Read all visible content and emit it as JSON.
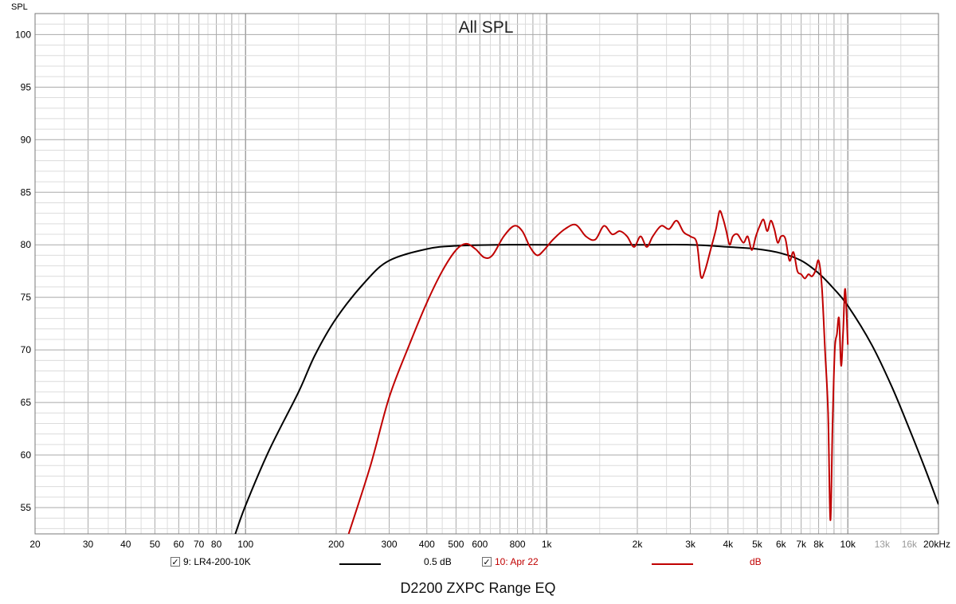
{
  "chart_data": {
    "type": "line",
    "title": "All SPL",
    "ylabel": "SPL",
    "xscale": "log",
    "xlim": [
      20,
      20000
    ],
    "ylim": [
      52.5,
      102
    ],
    "ytick_labels": [
      "55",
      "60",
      "65",
      "70",
      "75",
      "80",
      "85",
      "90",
      "95",
      "100"
    ],
    "xtick_labels": [
      {
        "value": 20,
        "label": "20",
        "minor": false
      },
      {
        "value": 30,
        "label": "30",
        "minor": false
      },
      {
        "value": 40,
        "label": "40",
        "minor": false
      },
      {
        "value": 50,
        "label": "50",
        "minor": false
      },
      {
        "value": 60,
        "label": "60",
        "minor": false
      },
      {
        "value": 70,
        "label": "70",
        "minor": false
      },
      {
        "value": 80,
        "label": "80",
        "minor": false
      },
      {
        "value": 100,
        "label": "100",
        "minor": false
      },
      {
        "value": 200,
        "label": "200",
        "minor": false
      },
      {
        "value": 300,
        "label": "300",
        "minor": false
      },
      {
        "value": 400,
        "label": "400",
        "minor": false
      },
      {
        "value": 500,
        "label": "500",
        "minor": false
      },
      {
        "value": 600,
        "label": "600",
        "minor": false
      },
      {
        "value": 800,
        "label": "800",
        "minor": false
      },
      {
        "value": 1000,
        "label": "1k",
        "minor": false
      },
      {
        "value": 2000,
        "label": "2k",
        "minor": false
      },
      {
        "value": 3000,
        "label": "3k",
        "minor": false
      },
      {
        "value": 4000,
        "label": "4k",
        "minor": false
      },
      {
        "value": 5000,
        "label": "5k",
        "minor": false
      },
      {
        "value": 6000,
        "label": "6k",
        "minor": false
      },
      {
        "value": 7000,
        "label": "7k",
        "minor": false
      },
      {
        "value": 8000,
        "label": "8k",
        "minor": false
      },
      {
        "value": 10000,
        "label": "10k",
        "minor": false
      },
      {
        "value": 13000,
        "label": "13k",
        "minor": true
      },
      {
        "value": 16000,
        "label": "16k",
        "minor": true
      },
      {
        "value": 20000,
        "label": "20kHz",
        "minor": false
      }
    ],
    "grid": true,
    "series": [
      {
        "name": "9: LR4-200-10K",
        "color": "#000000",
        "points": [
          [
            92,
            52.3
          ],
          [
            100,
            55.2
          ],
          [
            120,
            60.5
          ],
          [
            150,
            66.0
          ],
          [
            170,
            69.5
          ],
          [
            200,
            73.0
          ],
          [
            250,
            76.5
          ],
          [
            300,
            78.5
          ],
          [
            400,
            79.6
          ],
          [
            500,
            79.9
          ],
          [
            700,
            80.0
          ],
          [
            1000,
            80.0
          ],
          [
            2000,
            80.0
          ],
          [
            3000,
            80.0
          ],
          [
            4000,
            79.8
          ],
          [
            5000,
            79.6
          ],
          [
            6000,
            79.2
          ],
          [
            7000,
            78.5
          ],
          [
            8000,
            77.3
          ],
          [
            9000,
            75.8
          ],
          [
            10000,
            74.2
          ],
          [
            12000,
            70.5
          ],
          [
            14000,
            66.5
          ],
          [
            16000,
            62.5
          ],
          [
            18000,
            58.8
          ],
          [
            20000,
            55.3
          ]
        ]
      },
      {
        "name": "10: Apr 22",
        "color": "#c00000",
        "points": [
          [
            220,
            52.5
          ],
          [
            260,
            59.0
          ],
          [
            300,
            65.5
          ],
          [
            350,
            70.5
          ],
          [
            400,
            74.5
          ],
          [
            450,
            77.5
          ],
          [
            500,
            79.5
          ],
          [
            540,
            80.1
          ],
          [
            580,
            79.6
          ],
          [
            620,
            78.8
          ],
          [
            660,
            79.0
          ],
          [
            720,
            80.8
          ],
          [
            780,
            81.8
          ],
          [
            830,
            81.3
          ],
          [
            880,
            79.8
          ],
          [
            930,
            79.0
          ],
          [
            980,
            79.5
          ],
          [
            1050,
            80.5
          ],
          [
            1150,
            81.5
          ],
          [
            1250,
            81.9
          ],
          [
            1350,
            80.8
          ],
          [
            1450,
            80.5
          ],
          [
            1550,
            81.8
          ],
          [
            1650,
            81.0
          ],
          [
            1750,
            81.3
          ],
          [
            1850,
            80.8
          ],
          [
            1950,
            79.8
          ],
          [
            2050,
            80.8
          ],
          [
            2150,
            79.8
          ],
          [
            2250,
            80.8
          ],
          [
            2400,
            81.8
          ],
          [
            2550,
            81.5
          ],
          [
            2700,
            82.3
          ],
          [
            2850,
            81.2
          ],
          [
            3000,
            80.8
          ],
          [
            3150,
            80.2
          ],
          [
            3250,
            77.0
          ],
          [
            3350,
            77.5
          ],
          [
            3500,
            79.5
          ],
          [
            3650,
            81.5
          ],
          [
            3750,
            83.2
          ],
          [
            3850,
            82.5
          ],
          [
            3950,
            81.3
          ],
          [
            4050,
            80.0
          ],
          [
            4150,
            80.8
          ],
          [
            4300,
            81.0
          ],
          [
            4500,
            80.2
          ],
          [
            4650,
            80.8
          ],
          [
            4800,
            79.5
          ],
          [
            4950,
            80.8
          ],
          [
            5100,
            81.8
          ],
          [
            5250,
            82.4
          ],
          [
            5400,
            81.3
          ],
          [
            5550,
            82.3
          ],
          [
            5700,
            81.5
          ],
          [
            5850,
            80.2
          ],
          [
            6000,
            80.8
          ],
          [
            6200,
            80.6
          ],
          [
            6400,
            78.5
          ],
          [
            6600,
            79.3
          ],
          [
            6800,
            77.5
          ],
          [
            7000,
            77.2
          ],
          [
            7200,
            76.8
          ],
          [
            7400,
            77.2
          ],
          [
            7600,
            77.0
          ],
          [
            7800,
            77.5
          ],
          [
            8000,
            78.5
          ],
          [
            8200,
            76.0
          ],
          [
            8400,
            70.0
          ],
          [
            8600,
            64.0
          ],
          [
            8750,
            53.8
          ],
          [
            8900,
            63.0
          ],
          [
            9050,
            70.0
          ],
          [
            9200,
            71.5
          ],
          [
            9350,
            73.0
          ],
          [
            9500,
            68.5
          ],
          [
            9650,
            71.8
          ],
          [
            9800,
            75.8
          ],
          [
            10000,
            70.5
          ]
        ]
      }
    ],
    "legend": {
      "position": "bottom",
      "items": [
        {
          "name": "9: LR4-200-10K",
          "value": "0.5 dB",
          "checked": true
        },
        {
          "name": "10: Apr 22",
          "value": "dB",
          "checked": true
        }
      ]
    },
    "footer_caption": "D2200 ZXPC Range EQ",
    "colors": {
      "plot_bg": "#ffffff",
      "major_grid": "#a9a9a9",
      "minor_grid": "#dcdcdc",
      "axis_text": "#000000",
      "minor_text": "#9a9a9a"
    }
  }
}
